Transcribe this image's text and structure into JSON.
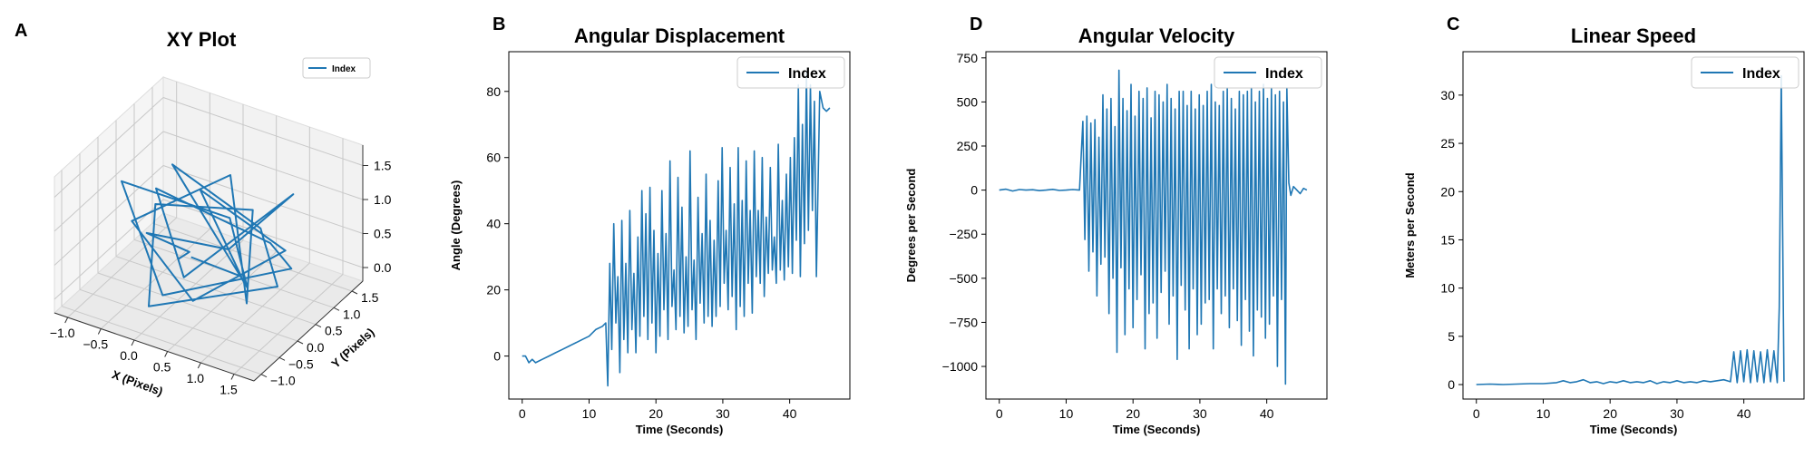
{
  "chart_data": [
    {
      "panel_label": "A",
      "type": "line-3d",
      "title": "XY Plot",
      "xlabel": "X (Pixels)",
      "ylabel": "Y (Pixels)",
      "zlabel": "",
      "xlim": [
        -1.2,
        1.8
      ],
      "ylim": [
        -1.2,
        1.8
      ],
      "zlim": [
        -0.2,
        1.8
      ],
      "xticks": [
        "−1.0",
        "−0.5",
        "0.0",
        "0.5",
        "1.0",
        "1.5"
      ],
      "yticks": [
        "−1.0",
        "−0.5",
        "0.0",
        "0.5",
        "1.0",
        "1.5"
      ],
      "zticks": [
        "0.0",
        "0.5",
        "1.0",
        "1.5"
      ],
      "legend": [
        "Index"
      ],
      "legend_position": "top-right",
      "color": "#1f77b4",
      "series": [
        {
          "name": "Index",
          "x": [
            0.0,
            0.12,
            -0.25,
            0.6,
            1.3,
            0.2,
            -0.6,
            0.9,
            1.6,
            0.1,
            -0.9,
            0.4,
            1.1,
            -0.3,
            0.7,
            1.5,
            0.0,
            -0.5,
            0.8,
            1.2,
            0.3,
            -0.8,
            0.5,
            1.4,
            -0.1,
            0.9,
            0.2
          ],
          "y": [
            0.0,
            0.1,
            -0.4,
            0.3,
            0.8,
            -0.2,
            0.5,
            0.9,
            0.2,
            -0.6,
            0.1,
            0.7,
            -0.1,
            0.4,
            1.0,
            0.0,
            -0.8,
            0.3,
            0.6,
            -0.3,
            0.9,
            0.2,
            -0.5,
            0.4,
            0.8,
            0.1,
            0.0
          ],
          "z": [
            0.4,
            0.5,
            0.9,
            0.6,
            1.4,
            0.3,
            1.0,
            0.5,
            0.7,
            0.2,
            1.2,
            0.8,
            0.4,
            1.5,
            0.6,
            0.5,
            0.1,
            0.9,
            1.1,
            0.3,
            1.3,
            0.6,
            0.2,
            0.8,
            1.0,
            0.4,
            0.5
          ]
        }
      ]
    },
    {
      "panel_label": "B",
      "type": "line",
      "title": "Angular Displacement",
      "xlabel": "Time (Seconds)",
      "ylabel": "Angle (Degrees)",
      "xlim": [
        -2,
        49
      ],
      "ylim": [
        -13,
        92
      ],
      "xticks": [
        0,
        10,
        20,
        30,
        40
      ],
      "yticks": [
        0,
        20,
        40,
        60,
        80
      ],
      "legend": [
        "Index"
      ],
      "legend_position": "top-right",
      "color": "#1f77b4",
      "series": [
        {
          "name": "Index",
          "x": [
            0.0,
            0.5,
            1.0,
            1.5,
            2.0,
            3.0,
            4.0,
            5.0,
            6.0,
            7.0,
            8.0,
            9.0,
            10.0,
            11.0,
            12.0,
            12.5,
            12.8,
            13.1,
            13.4,
            13.7,
            14.0,
            14.3,
            14.6,
            14.9,
            15.2,
            15.5,
            15.8,
            16.1,
            16.4,
            16.7,
            17.0,
            17.3,
            17.6,
            17.9,
            18.2,
            18.5,
            18.8,
            19.1,
            19.4,
            19.7,
            20.0,
            20.3,
            20.6,
            20.9,
            21.2,
            21.5,
            21.8,
            22.1,
            22.4,
            22.7,
            23.0,
            23.3,
            23.6,
            23.9,
            24.2,
            24.5,
            24.8,
            25.1,
            25.4,
            25.7,
            26.0,
            26.3,
            26.6,
            26.9,
            27.2,
            27.5,
            27.8,
            28.1,
            28.4,
            28.7,
            29.0,
            29.3,
            29.6,
            29.9,
            30.2,
            30.5,
            30.8,
            31.1,
            31.4,
            31.7,
            32.0,
            32.3,
            32.6,
            32.9,
            33.2,
            33.5,
            33.8,
            34.1,
            34.4,
            34.7,
            35.0,
            35.3,
            35.6,
            35.9,
            36.2,
            36.5,
            36.8,
            37.1,
            37.4,
            37.7,
            38.0,
            38.3,
            38.6,
            38.9,
            39.2,
            39.5,
            39.8,
            40.1,
            40.4,
            40.7,
            41.0,
            41.3,
            41.6,
            41.9,
            42.2,
            42.5,
            42.8,
            43.1,
            43.4,
            43.7,
            44.0,
            44.5,
            45.0,
            45.5,
            46.0
          ],
          "y": [
            0,
            0,
            -2,
            -1,
            -2,
            -1,
            0,
            1,
            2,
            3,
            4,
            5,
            6,
            8,
            9,
            10,
            -9,
            28,
            2,
            40,
            10,
            24,
            -5,
            41,
            5,
            28,
            1,
            44,
            8,
            25,
            1,
            36,
            6,
            50,
            12,
            43,
            5,
            51,
            10,
            38,
            1,
            31,
            6,
            50,
            14,
            37,
            5,
            59,
            15,
            26,
            8,
            54,
            12,
            45,
            7,
            30,
            9,
            62,
            14,
            29,
            5,
            48,
            16,
            37,
            10,
            55,
            12,
            41,
            9,
            35,
            12,
            53,
            15,
            63,
            22,
            38,
            14,
            57,
            18,
            46,
            8,
            63,
            15,
            47,
            12,
            59,
            22,
            44,
            13,
            62,
            24,
            44,
            22,
            60,
            18,
            42,
            25,
            57,
            26,
            36,
            22,
            64,
            26,
            47,
            23,
            55,
            27,
            60,
            25,
            66,
            35,
            82,
            24,
            70,
            34,
            86,
            38,
            82,
            44,
            77,
            24,
            80,
            75,
            74,
            75
          ]
        }
      ]
    },
    {
      "panel_label": "D",
      "type": "line",
      "title": "Angular Velocity",
      "xlabel": "Time (Seconds)",
      "ylabel": "Degrees per Second",
      "xlim": [
        -2,
        49
      ],
      "ylim": [
        -1185,
        785
      ],
      "xticks": [
        0,
        10,
        20,
        30,
        40
      ],
      "yticks": [
        -1000,
        -750,
        -500,
        -250,
        0,
        250,
        500,
        750
      ],
      "legend": [
        "Index"
      ],
      "legend_position": "top-right",
      "color": "#1f77b4",
      "series": [
        {
          "name": "Index",
          "x": [
            0.0,
            1.0,
            2.0,
            3.0,
            4.0,
            5.0,
            6.0,
            7.0,
            8.0,
            9.0,
            10.0,
            11.0,
            12.0,
            12.5,
            12.8,
            13.1,
            13.4,
            13.7,
            14.0,
            14.3,
            14.6,
            14.9,
            15.2,
            15.5,
            15.8,
            16.1,
            16.4,
            16.7,
            17.0,
            17.3,
            17.6,
            17.9,
            18.2,
            18.5,
            18.8,
            19.1,
            19.4,
            19.7,
            20.0,
            20.3,
            20.6,
            20.9,
            21.2,
            21.5,
            21.8,
            22.1,
            22.4,
            22.7,
            23.0,
            23.3,
            23.6,
            23.9,
            24.2,
            24.5,
            24.8,
            25.1,
            25.4,
            25.7,
            26.0,
            26.3,
            26.6,
            26.9,
            27.2,
            27.5,
            27.8,
            28.1,
            28.4,
            28.7,
            29.0,
            29.3,
            29.6,
            29.9,
            30.2,
            30.5,
            30.8,
            31.1,
            31.4,
            31.7,
            32.0,
            32.3,
            32.6,
            32.9,
            33.2,
            33.5,
            33.8,
            34.1,
            34.4,
            34.7,
            35.0,
            35.3,
            35.6,
            35.9,
            36.2,
            36.5,
            36.8,
            37.1,
            37.4,
            37.7,
            38.0,
            38.3,
            38.6,
            38.9,
            39.2,
            39.5,
            39.8,
            40.1,
            40.4,
            40.7,
            41.0,
            41.3,
            41.6,
            41.9,
            42.2,
            42.5,
            42.8,
            43.0,
            43.3,
            43.6,
            44.0,
            44.5,
            45.0,
            45.5,
            46.0
          ],
          "y": [
            0,
            5,
            -5,
            3,
            0,
            2,
            -3,
            0,
            4,
            -2,
            0,
            3,
            0,
            390,
            -280,
            420,
            -460,
            380,
            -350,
            400,
            -600,
            300,
            -420,
            540,
            -380,
            460,
            -700,
            520,
            -500,
            360,
            -920,
            680,
            -440,
            520,
            -820,
            450,
            -560,
            600,
            -780,
            420,
            -620,
            560,
            -480,
            520,
            -900,
            580,
            -700,
            410,
            -640,
            560,
            -840,
            540,
            -580,
            500,
            -460,
            600,
            -760,
            520,
            -600,
            460,
            -960,
            560,
            -540,
            560,
            -680,
            480,
            -900,
            560,
            -560,
            460,
            -820,
            540,
            -760,
            480,
            -640,
            560,
            -620,
            600,
            -900,
            500,
            -560,
            480,
            -700,
            560,
            -600,
            580,
            -780,
            520,
            -560,
            460,
            -740,
            560,
            -880,
            540,
            -620,
            560,
            -800,
            580,
            -940,
            500,
            -680,
            560,
            -720,
            600,
            -840,
            520,
            -760,
            580,
            -600,
            540,
            -1000,
            560,
            -620,
            500,
            -1100,
            580,
            40,
            -30,
            20,
            0,
            -20,
            10,
            0
          ]
        }
      ]
    },
    {
      "panel_label": "C",
      "type": "line",
      "title": "Linear Speed",
      "xlabel": "Time (Seconds)",
      "ylabel": "Meters per Second",
      "xlim": [
        -2,
        49
      ],
      "ylim": [
        -1.5,
        34.5
      ],
      "xticks": [
        0,
        10,
        20,
        30,
        40
      ],
      "yticks": [
        0,
        5,
        10,
        15,
        20,
        25,
        30
      ],
      "legend": [
        "Index"
      ],
      "legend_position": "top-right",
      "color": "#1f77b4",
      "series": [
        {
          "name": "Index",
          "x": [
            0.0,
            2.0,
            4.0,
            6.0,
            8.0,
            10.0,
            12.0,
            13.0,
            14.0,
            15.0,
            16.0,
            17.0,
            18.0,
            19.0,
            20.0,
            21.0,
            22.0,
            23.0,
            24.0,
            25.0,
            26.0,
            27.0,
            28.0,
            29.0,
            30.0,
            31.0,
            32.0,
            33.0,
            34.0,
            35.0,
            36.0,
            37.0,
            38.0,
            38.5,
            39.0,
            39.5,
            40.0,
            40.5,
            41.0,
            41.5,
            42.0,
            42.5,
            43.0,
            43.5,
            44.0,
            44.5,
            45.0,
            45.3,
            45.6,
            46.0
          ],
          "y": [
            0.0,
            0.05,
            0.0,
            0.05,
            0.1,
            0.1,
            0.2,
            0.4,
            0.2,
            0.3,
            0.5,
            0.2,
            0.3,
            0.1,
            0.3,
            0.2,
            0.4,
            0.2,
            0.3,
            0.2,
            0.4,
            0.1,
            0.3,
            0.2,
            0.4,
            0.2,
            0.3,
            0.2,
            0.4,
            0.3,
            0.4,
            0.5,
            0.3,
            3.4,
            0.2,
            3.5,
            0.3,
            3.6,
            0.2,
            3.5,
            0.3,
            3.4,
            0.2,
            3.6,
            0.3,
            3.5,
            0.2,
            8.0,
            32.0,
            0.3
          ]
        }
      ]
    }
  ]
}
